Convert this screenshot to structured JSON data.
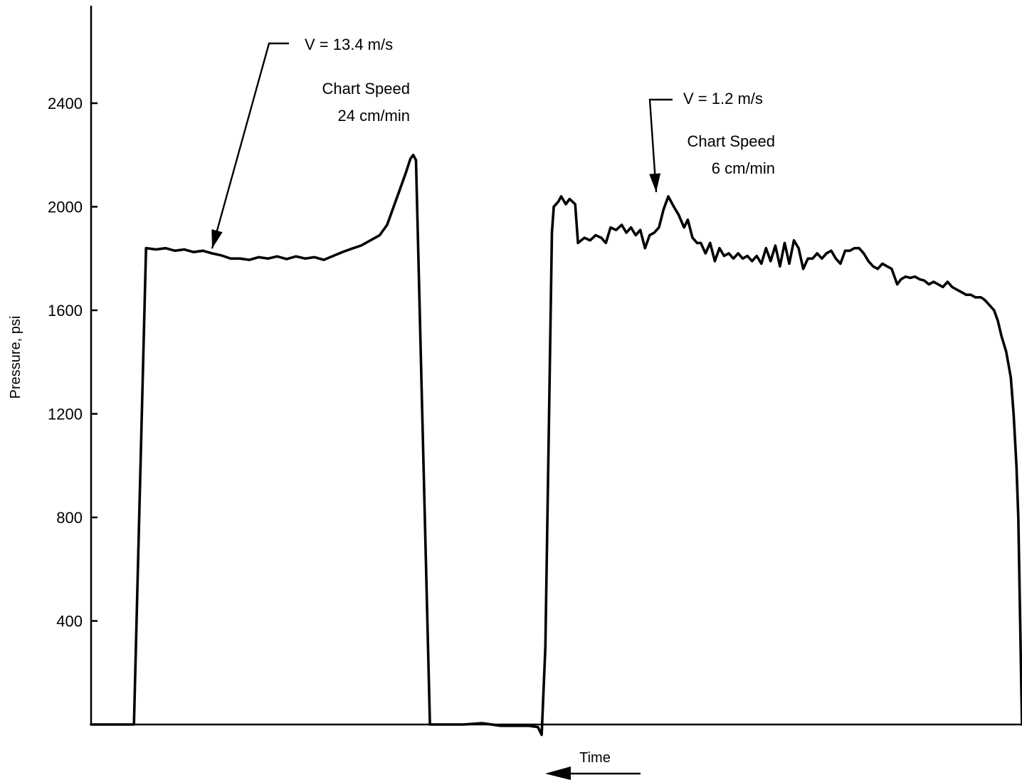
{
  "chart_data": {
    "type": "line",
    "title": "",
    "xlabel": "Time",
    "ylabel": "Pressure, psi",
    "yticks": [
      400,
      800,
      1200,
      1600,
      2000,
      2400
    ],
    "ylim": [
      0,
      2700
    ],
    "xlim": [
      0,
      100
    ],
    "grid": false,
    "x_direction_arrow": "left",
    "series": [
      {
        "values": [
          [
            0,
            0
          ],
          [
            4.0,
            0
          ],
          [
            4.6,
            0
          ],
          [
            5.9,
            1840
          ],
          [
            7,
            1835
          ],
          [
            8,
            1840
          ],
          [
            9,
            1830
          ],
          [
            10,
            1835
          ],
          [
            11,
            1825
          ],
          [
            12,
            1830
          ],
          [
            13,
            1820
          ],
          [
            14,
            1812
          ],
          [
            15,
            1800
          ],
          [
            16,
            1800
          ],
          [
            17,
            1795
          ],
          [
            18,
            1805
          ],
          [
            19,
            1800
          ],
          [
            20,
            1808
          ],
          [
            21,
            1798
          ],
          [
            22,
            1808
          ],
          [
            23,
            1800
          ],
          [
            24,
            1805
          ],
          [
            25,
            1795
          ],
          [
            26,
            1810
          ],
          [
            27,
            1825
          ],
          [
            28,
            1838
          ],
          [
            29,
            1850
          ],
          [
            30,
            1870
          ],
          [
            31,
            1890
          ],
          [
            31.8,
            1930
          ],
          [
            32.5,
            2000
          ],
          [
            33.2,
            2070
          ],
          [
            33.8,
            2130
          ],
          [
            34.3,
            2185
          ],
          [
            34.6,
            2200
          ],
          [
            34.9,
            2180
          ],
          [
            36.4,
            0
          ],
          [
            40,
            0
          ],
          [
            42,
            5
          ],
          [
            44,
            -5
          ],
          [
            46,
            -5
          ],
          [
            47,
            -5
          ],
          [
            48,
            -10
          ],
          [
            48.4,
            -40
          ],
          [
            48.8,
            300
          ],
          [
            49.2,
            1200
          ],
          [
            49.5,
            1900
          ],
          [
            49.7,
            2000
          ],
          [
            50.2,
            2020
          ],
          [
            50.5,
            2040
          ],
          [
            51,
            2010
          ],
          [
            51.4,
            2030
          ],
          [
            52,
            2010
          ],
          [
            52.3,
            1860
          ],
          [
            53,
            1880
          ],
          [
            53.6,
            1870
          ],
          [
            54.2,
            1890
          ],
          [
            54.8,
            1880
          ],
          [
            55.3,
            1860
          ],
          [
            55.8,
            1920
          ],
          [
            56.4,
            1910
          ],
          [
            57,
            1930
          ],
          [
            57.5,
            1900
          ],
          [
            58,
            1920
          ],
          [
            58.5,
            1890
          ],
          [
            59,
            1910
          ],
          [
            59.5,
            1840
          ],
          [
            60,
            1890
          ],
          [
            60.5,
            1900
          ],
          [
            61,
            1920
          ],
          [
            61.5,
            1990
          ],
          [
            62,
            2040
          ],
          [
            62.6,
            2000
          ],
          [
            63.1,
            1970
          ],
          [
            63.7,
            1920
          ],
          [
            64.1,
            1950
          ],
          [
            64.6,
            1880
          ],
          [
            65.1,
            1860
          ],
          [
            65.5,
            1860
          ],
          [
            66,
            1820
          ],
          [
            66.5,
            1860
          ],
          [
            67,
            1790
          ],
          [
            67.5,
            1840
          ],
          [
            68,
            1810
          ],
          [
            68.5,
            1820
          ],
          [
            69,
            1800
          ],
          [
            69.5,
            1820
          ],
          [
            70,
            1800
          ],
          [
            70.5,
            1810
          ],
          [
            71,
            1790
          ],
          [
            71.5,
            1810
          ],
          [
            72,
            1780
          ],
          [
            72.5,
            1840
          ],
          [
            73,
            1790
          ],
          [
            73.5,
            1850
          ],
          [
            74,
            1770
          ],
          [
            74.5,
            1860
          ],
          [
            75,
            1780
          ],
          [
            75.5,
            1870
          ],
          [
            76,
            1840
          ],
          [
            76.5,
            1760
          ],
          [
            77,
            1800
          ],
          [
            77.5,
            1800
          ],
          [
            78,
            1820
          ],
          [
            78.5,
            1800
          ],
          [
            79,
            1820
          ],
          [
            79.5,
            1830
          ],
          [
            80,
            1800
          ],
          [
            80.5,
            1780
          ],
          [
            81,
            1830
          ],
          [
            81.5,
            1830
          ],
          [
            82,
            1840
          ],
          [
            82.5,
            1840
          ],
          [
            83,
            1820
          ],
          [
            83.5,
            1790
          ],
          [
            84,
            1770
          ],
          [
            84.5,
            1760
          ],
          [
            85,
            1780
          ],
          [
            85.5,
            1770
          ],
          [
            86,
            1760
          ],
          [
            86.6,
            1700
          ],
          [
            87,
            1720
          ],
          [
            87.5,
            1730
          ],
          [
            88,
            1725
          ],
          [
            88.5,
            1730
          ],
          [
            89,
            1720
          ],
          [
            89.5,
            1715
          ],
          [
            90,
            1700
          ],
          [
            90.5,
            1710
          ],
          [
            91,
            1700
          ],
          [
            91.5,
            1690
          ],
          [
            92,
            1710
          ],
          [
            92.5,
            1690
          ],
          [
            93,
            1680
          ],
          [
            93.5,
            1670
          ],
          [
            94,
            1660
          ],
          [
            94.5,
            1660
          ],
          [
            95,
            1650
          ],
          [
            95.6,
            1650
          ],
          [
            96,
            1640
          ],
          [
            96.5,
            1620
          ],
          [
            97,
            1600
          ],
          [
            97.4,
            1560
          ],
          [
            97.8,
            1500
          ],
          [
            98.3,
            1440
          ],
          [
            98.8,
            1340
          ],
          [
            99.1,
            1200
          ],
          [
            99.4,
            1000
          ],
          [
            99.6,
            800
          ],
          [
            99.8,
            400
          ],
          [
            99.95,
            100
          ],
          [
            100,
            0
          ]
        ]
      }
    ],
    "annotations": [
      {
        "lines": [
          "V = 13.4 m/s",
          "Chart Speed",
          "24 cm/min"
        ],
        "points_to": [
          13,
          1822
        ]
      },
      {
        "lines": [
          "V = 1.2 m/s",
          "Chart Speed",
          "6 cm/min"
        ],
        "points_to": [
          60.7,
          2040
        ]
      }
    ]
  }
}
